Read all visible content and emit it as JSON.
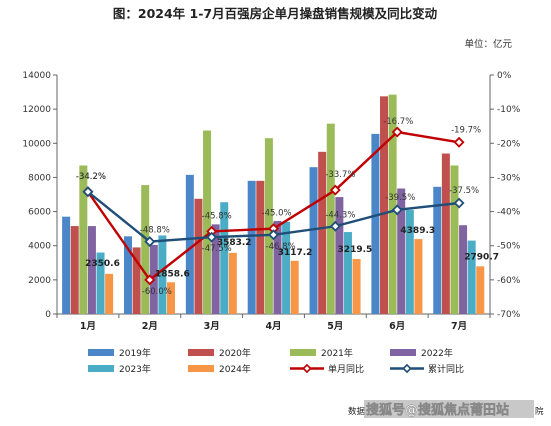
{
  "chart_data": {
    "type": "bar",
    "title": "图：2024年 1-7月百强房企单月操盘销售规模及同比变动",
    "unit": "单位：亿元",
    "categories": [
      "1月",
      "2月",
      "3月",
      "4月",
      "5月",
      "6月",
      "7月"
    ],
    "y_left": {
      "range": [
        0,
        14000
      ],
      "ticks": [
        "0",
        "2000",
        "4000",
        "6000",
        "8000",
        "10000",
        "12000",
        "14000"
      ]
    },
    "y_right": {
      "range": [
        -0.7,
        0
      ],
      "ticks": [
        "0%",
        "-10%",
        "-20%",
        "-30%",
        "-40%",
        "-50%",
        "-60%",
        "-70%"
      ]
    },
    "series": [
      {
        "name": "2019年",
        "color": "#4A86C8",
        "values": [
          5700,
          4550,
          8150,
          7800,
          8600,
          10550,
          7450
        ]
      },
      {
        "name": "2020年",
        "color": "#C0504D",
        "values": [
          5150,
          3900,
          6750,
          7800,
          9500,
          12750,
          9400
        ]
      },
      {
        "name": "2021年",
        "color": "#9BBB59",
        "values": [
          8700,
          7550,
          10750,
          10300,
          11150,
          12850,
          8700
        ]
      },
      {
        "name": "2022年",
        "color": "#8064A2",
        "values": [
          5150,
          4050,
          5250,
          5450,
          6850,
          7350,
          5200
        ]
      },
      {
        "name": "2023年",
        "color": "#4BACC6",
        "values": [
          3600,
          4600,
          6550,
          5400,
          4800,
          6100,
          4300
        ]
      },
      {
        "name": "2024年",
        "color": "#F79646",
        "values": [
          2350.6,
          1858.6,
          3583.2,
          3117.2,
          3219.5,
          4389.3,
          2790.7
        ],
        "labels": [
          "2350.6",
          "1858.6",
          "3583.2",
          "3117.2",
          "3219.5",
          "4389.3",
          "2790.7"
        ]
      }
    ],
    "lines": [
      {
        "name": "单月同比",
        "color": "#C00000",
        "marker": "diamond",
        "values": [
          -34.2,
          -60.0,
          -45.8,
          -45.0,
          -33.7,
          -16.7,
          -19.7
        ],
        "labels": [
          "-34.2%",
          "-60.0%",
          "-45.8%",
          "-45.0%",
          "-33.7%",
          "-16.7%",
          "-19.7%"
        ]
      },
      {
        "name": "累计同比",
        "color": "#1F4E79",
        "marker": "diamond",
        "values": [
          -34.2,
          -48.8,
          -47.5,
          -46.8,
          -44.3,
          -39.5,
          -37.5
        ],
        "labels": [
          "-34.2%",
          "-48.8%",
          "-47.5%",
          "-46.8%",
          "-44.3%",
          "-39.5%",
          "-37.5%"
        ]
      }
    ],
    "legend_position": "bottom",
    "grid": false
  },
  "footer": {
    "source_prefix": "数据",
    "watermark": "搜狐号@搜狐焦点莆田站",
    "source_suffix": "院"
  }
}
